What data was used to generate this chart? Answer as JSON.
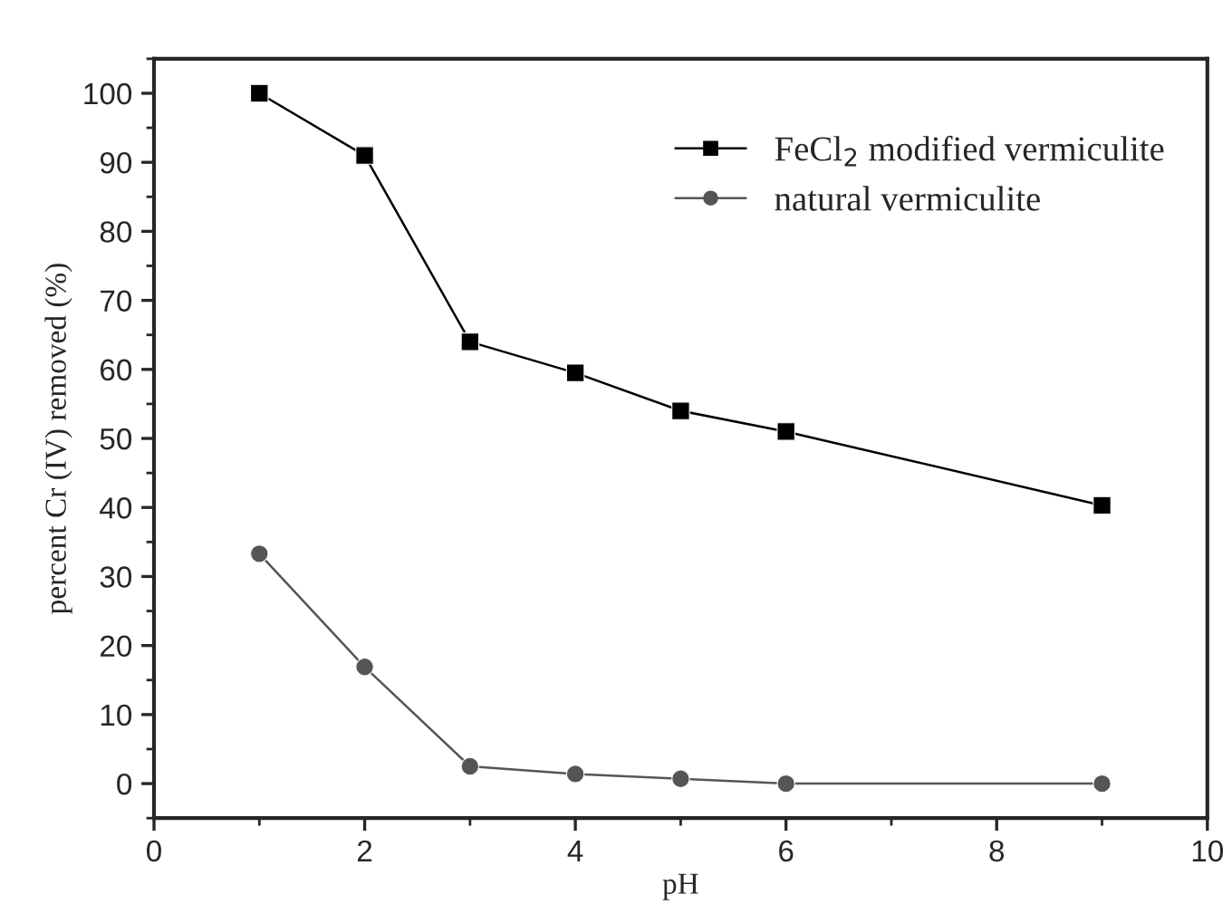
{
  "chart_data": {
    "type": "line",
    "xlabel": "pH",
    "ylabel": "percent Cr (IV) removed (%)",
    "x": [
      1,
      2,
      3,
      4,
      5,
      6,
      9
    ],
    "series": [
      {
        "name": "FeCl$_{2}$ modified vermiculite",
        "color": "#000000",
        "marker": "square",
        "values": [
          100,
          91,
          64,
          59.5,
          54,
          51,
          40.3
        ]
      },
      {
        "name": "natural vermiculite",
        "color": "#555555",
        "marker": "circle",
        "values": [
          33.3,
          16.9,
          2.5,
          1.4,
          0.7,
          0,
          0
        ]
      }
    ],
    "xlim": [
      0,
      10
    ],
    "xticks": [
      0,
      2,
      4,
      6,
      8,
      10
    ],
    "ylim": [
      -5,
      105
    ],
    "yticks": [
      0,
      10,
      20,
      30,
      40,
      50,
      60,
      70,
      80,
      90,
      100
    ],
    "grid": false,
    "legend": "top right",
    "line_style": "solid"
  }
}
